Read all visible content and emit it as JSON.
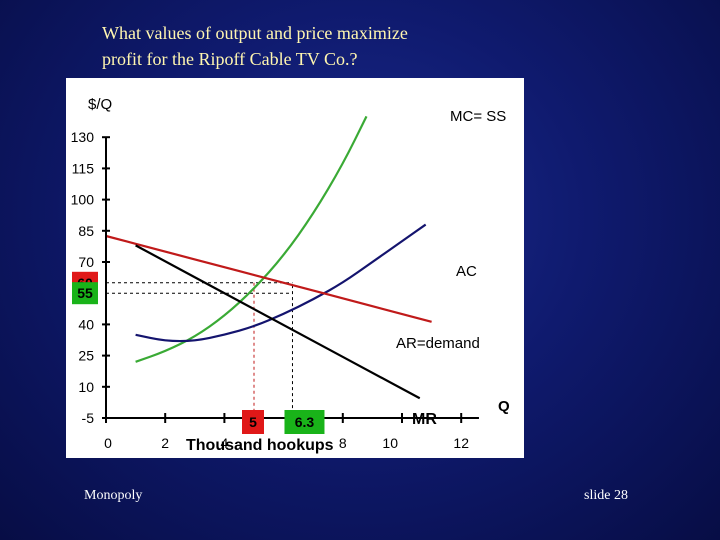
{
  "slide": {
    "title_line1": "What values of output and price maximize",
    "title_line2": "profit for the Ripoff Cable TV Co.?",
    "footer_left": "Monopoly",
    "footer_right": "slide 28"
  },
  "chart_data": {
    "type": "line",
    "title": "What values of output and price maximize profit for the Ripoff Cable TV Co.?",
    "ylabel": "$/Q",
    "xlabel": "Thousand hookups",
    "xaxis_end_label": "Q",
    "y_ticks": [
      "130",
      "115",
      "100",
      "85",
      "70",
      "40",
      "25",
      "10",
      "-5"
    ],
    "x_ticks": [
      "0",
      "2",
      "4",
      "8",
      "10",
      "12"
    ],
    "xlim": [
      0,
      12
    ],
    "ylim": [
      -5,
      130
    ],
    "highlight_x": [
      {
        "label": "5",
        "value": 5,
        "color": "#e01818"
      },
      {
        "label": "6.3",
        "value": 6.3,
        "color": "#19b319"
      }
    ],
    "highlight_y": [
      {
        "label": "60",
        "value": 60,
        "color": "#e01818"
      },
      {
        "label": "55",
        "value": 55,
        "color": "#19b319"
      }
    ],
    "series": [
      {
        "name": "MC= SS",
        "color": "#3aaa35",
        "points": [
          [
            1,
            22
          ],
          [
            2,
            27
          ],
          [
            3,
            34
          ],
          [
            4,
            44
          ],
          [
            5,
            57
          ],
          [
            6,
            73
          ],
          [
            7,
            93
          ],
          [
            8,
            117
          ],
          [
            8.8,
            140
          ]
        ]
      },
      {
        "name": "AC",
        "color": "#14146e",
        "points": [
          [
            1,
            35
          ],
          [
            2,
            32
          ],
          [
            3,
            32
          ],
          [
            4,
            35
          ],
          [
            5,
            39
          ],
          [
            6,
            45
          ],
          [
            7,
            52
          ],
          [
            8,
            60
          ],
          [
            9,
            70
          ],
          [
            10,
            80
          ],
          [
            10.8,
            88
          ]
        ]
      },
      {
        "name": "AR=demand",
        "color": "#c01a1a",
        "points": [
          [
            0,
            82.5
          ],
          [
            2,
            75
          ],
          [
            4,
            67.5
          ],
          [
            5,
            63.75
          ],
          [
            6.3,
            58.9
          ],
          [
            8,
            52.5
          ],
          [
            10,
            45
          ],
          [
            11,
            41.25
          ]
        ]
      },
      {
        "name": "MR",
        "color": "#000000",
        "points": [
          [
            1,
            78
          ],
          [
            5.5,
            43.5
          ],
          [
            10.6,
            4.5
          ]
        ]
      }
    ],
    "labels": {
      "mc": "MC= SS",
      "ac": "AC",
      "ar": "AR=demand",
      "mr": "MR"
    }
  }
}
